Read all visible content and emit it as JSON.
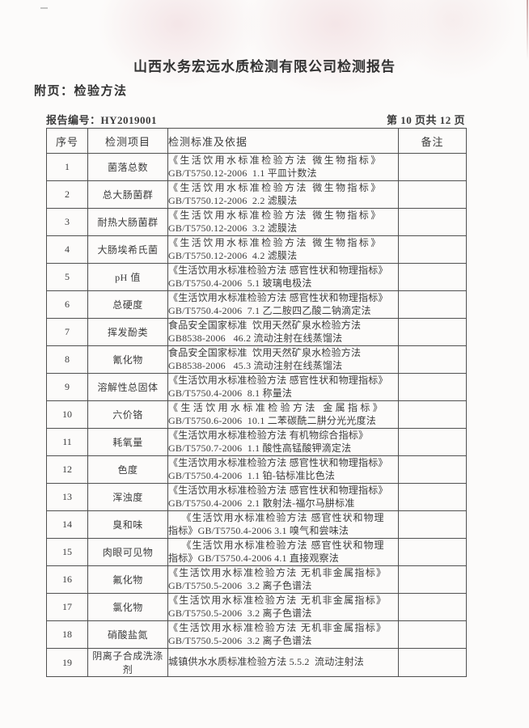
{
  "page": {
    "title": "山西水务宏远水质检测有限公司检测报告",
    "subtitle": "附页：检验方法",
    "report_no_label": "报告编号：",
    "report_no": "HY2019001",
    "page_info": "第 10 页共 12 页"
  },
  "table": {
    "headers": {
      "no": "序号",
      "item": "检测项目",
      "standard": "检测标准及依据",
      "remark": "备注"
    },
    "rows": [
      {
        "no": "1",
        "item": "菌落总数",
        "line1": "《生活饮用水标准检验方法 微生物指标》",
        "line2": "GB/T5750.12-2006  1.1 平皿计数法",
        "remark": ""
      },
      {
        "no": "2",
        "item": "总大肠菌群",
        "line1": "《生活饮用水标准检验方法 微生物指标》",
        "line2": "GB/T5750.12-2006  2.2 滤膜法",
        "remark": ""
      },
      {
        "no": "3",
        "item": "耐热大肠菌群",
        "line1": "《生活饮用水标准检验方法 微生物指标》",
        "line2": "GB/T5750.12-2006  3.2 滤膜法",
        "remark": ""
      },
      {
        "no": "4",
        "item": "大肠埃希氏菌",
        "line1": "《生活饮用水标准检验方法 微生物指标》",
        "line2": "GB/T5750.12-2006  4.2 滤膜法",
        "remark": ""
      },
      {
        "no": "5",
        "item": "pH 值",
        "line1": "《生活饮用水标准检验方法 感官性状和物理指标》",
        "line2": "GB/T5750.4-2006  5.1 玻璃电极法",
        "remark": ""
      },
      {
        "no": "6",
        "item": "总硬度",
        "line1": "《生活饮用水标准检验方法 感官性状和物理指标》",
        "line2": "GB/T5750.4-2006  7.1 乙二胺四乙酸二钠滴定法",
        "remark": ""
      },
      {
        "no": "7",
        "item": "挥发酚类",
        "line1": "食品安全国家标准  饮用天然矿泉水检验方法",
        "line2": "GB8538-2006   46.2 流动注射在线蒸馏法",
        "remark": ""
      },
      {
        "no": "8",
        "item": "氰化物",
        "line1": "食品安全国家标准  饮用天然矿泉水检验方法",
        "line2": "GB8538-2006   45.3 流动注射在线蒸馏法",
        "remark": ""
      },
      {
        "no": "9",
        "item": "溶解性总固体",
        "line1": "《生活饮用水标准检验方法 感官性状和物理指标》",
        "line2": "GB/T5750.4-2006  8.1 称量法",
        "remark": ""
      },
      {
        "no": "10",
        "item": "六价铬",
        "line1": "《生活饮用水标准检验方法 金属指标》",
        "line2": "GB/T5750.6-2006  10.1 二苯碳酰二肼分光光度法",
        "remark": ""
      },
      {
        "no": "11",
        "item": "耗氧量",
        "line1": "《生活饮用水标准检验方法 有机物综合指标》",
        "line2": "GB/T5750.7-2006  1.1 酸性高锰酸钾滴定法",
        "remark": ""
      },
      {
        "no": "12",
        "item": "色度",
        "line1": "《生活饮用水标准检验方法 感官性状和物理指标》",
        "line2": "GB/T5750.4-2006  1.1 铂-钴标准比色法",
        "remark": ""
      },
      {
        "no": "13",
        "item": "浑浊度",
        "line1": "《生活饮用水标准检验方法 感官性状和物理指标》",
        "line2": "GB/T5750.4-2006  2.1 散射法-福尔马肼标准",
        "remark": ""
      },
      {
        "no": "14",
        "item": "臭和味",
        "line1": "《生活饮用水标准检验方法 感官性状和物理",
        "line2": "指标》GB/T5750.4-2006 3.1 嗅气和尝味法",
        "remark": ""
      },
      {
        "no": "15",
        "item": "肉眼可见物",
        "line1": "《生活饮用水标准检验方法 感官性状和物理",
        "line2": "指标》GB/T5750.4-2006 4.1 直接观察法",
        "remark": ""
      },
      {
        "no": "16",
        "item": "氟化物",
        "line1": "《生活饮用水标准检验方法 无机非金属指标》",
        "line2": "GB/T5750.5-2006  3.2 离子色谱法",
        "remark": ""
      },
      {
        "no": "17",
        "item": "氯化物",
        "line1": "《生活饮用水标准检验方法 无机非金属指标》",
        "line2": "GB/T5750.5-2006  3.2 离子色谱法",
        "remark": ""
      },
      {
        "no": "18",
        "item": "硝酸盐氮",
        "line1": "《生活饮用水标准检验方法 无机非金属指标》",
        "line2": "GB/T5750.5-2006  3.2 离子色谱法",
        "remark": ""
      },
      {
        "no": "19",
        "item": "阴离子合成洗涤剂",
        "line1": "城镇供水水质标准检验方法 5.5.2  流动注射法",
        "remark": ""
      }
    ]
  }
}
